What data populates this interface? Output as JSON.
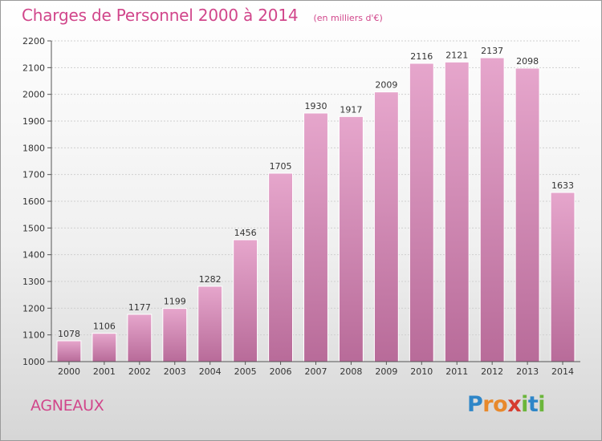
{
  "header": {
    "title": "Charges de Personnel 2000 à 2014",
    "subtitle": "(en milliers d'€)"
  },
  "footer": {
    "commune": "AGNEAUX",
    "brand_letters": [
      {
        "ch": "P",
        "color": "#2e86c8"
      },
      {
        "ch": "r",
        "color": "#e8892b"
      },
      {
        "ch": "o",
        "color": "#e8892b"
      },
      {
        "ch": "x",
        "color": "#d63b2f"
      },
      {
        "ch": "i",
        "color": "#6bb63b"
      },
      {
        "ch": "t",
        "color": "#2e86c8"
      },
      {
        "ch": "i",
        "color": "#6bb63b"
      }
    ]
  },
  "colors": {
    "accent": "#d1468b",
    "bar_top": "#e6a6cc",
    "bar_bottom": "#b86b99",
    "bar_edge": "#ffffff"
  },
  "chart_data": {
    "type": "bar",
    "categories": [
      "2000",
      "2001",
      "2002",
      "2003",
      "2004",
      "2005",
      "2006",
      "2007",
      "2008",
      "2009",
      "2010",
      "2011",
      "2012",
      "2013",
      "2014"
    ],
    "values": [
      1078,
      1106,
      1177,
      1199,
      1282,
      1456,
      1705,
      1930,
      1917,
      2009,
      2116,
      2121,
      2137,
      2098,
      1633
    ],
    "ylim": [
      1000,
      2200
    ],
    "yticks": [
      1000,
      1100,
      1200,
      1300,
      1400,
      1500,
      1600,
      1700,
      1800,
      1900,
      2000,
      2100,
      2200
    ],
    "grid": true,
    "data_labels": true
  }
}
